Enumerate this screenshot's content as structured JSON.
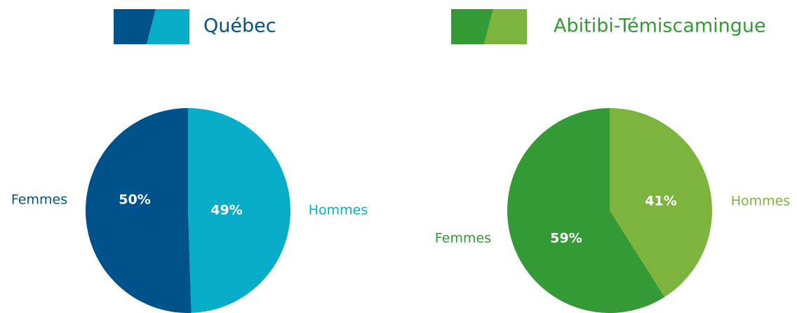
{
  "chart_data": [
    {
      "type": "pie",
      "title": "Québec",
      "categories": [
        "Hommes",
        "Femmes"
      ],
      "values": [
        49,
        50
      ],
      "value_labels": [
        "49%",
        "50%"
      ],
      "colors": [
        "#07acc9",
        "#00538a"
      ],
      "title_color": "#00538a"
    },
    {
      "type": "pie",
      "title": "Abitibi-Témiscamingue",
      "categories": [
        "Hommes",
        "Femmes"
      ],
      "values": [
        41,
        59
      ],
      "value_labels": [
        "41%",
        "59%"
      ],
      "colors": [
        "#7db43d",
        "#339a35"
      ],
      "title_color": "#339a35"
    }
  ]
}
